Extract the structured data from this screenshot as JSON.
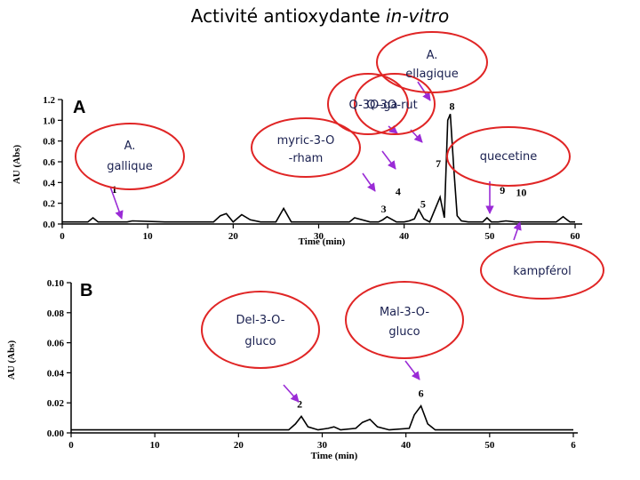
{
  "page": {
    "title_main": "Activité antioxydante ",
    "title_italic": "in-vitro"
  },
  "chart_data": [
    {
      "type": "line",
      "panel": "A",
      "xlabel": "Time (min)",
      "ylabel": "AU (Abs)",
      "xlim": [
        0,
        60
      ],
      "ylim": [
        0,
        1.2
      ],
      "xticks": [
        "0",
        "10",
        "20",
        "30",
        "40",
        "50",
        "60"
      ],
      "yticks": [
        "0.0",
        "0.2",
        "0.4",
        "0.6",
        "0.8",
        "1.0",
        "1.2"
      ],
      "series": [
        {
          "x": [
            0,
            3.0,
            3.6,
            4.2,
            6,
            7.6,
            8.2,
            12,
            16,
            17.7,
            18.5,
            19.2,
            20,
            21,
            22,
            23.2,
            25,
            25.9,
            26.8,
            30,
            33.6,
            34.2,
            36,
            37,
            37.5,
            38,
            39.1,
            40,
            40.6,
            41.2,
            41.7,
            42.3,
            43,
            44.2,
            44.7,
            45.1,
            45.4,
            45.8,
            46.2,
            46.7,
            47.5,
            49.2,
            49.7,
            50.2,
            51,
            51.9,
            53,
            56.3,
            57.8,
            58.6,
            59.4,
            60
          ],
          "y": [
            0.02,
            0.02,
            0.06,
            0.02,
            0.02,
            0.02,
            0.03,
            0.02,
            0.02,
            0.02,
            0.08,
            0.1,
            0.02,
            0.09,
            0.04,
            0.02,
            0.02,
            0.15,
            0.02,
            0.02,
            0.02,
            0.06,
            0.02,
            0.02,
            0.04,
            0.07,
            0.02,
            0.02,
            0.03,
            0.05,
            0.14,
            0.05,
            0.02,
            0.26,
            0.06,
            1.0,
            1.06,
            0.55,
            0.08,
            0.03,
            0.02,
            0.02,
            0.06,
            0.02,
            0.02,
            0.03,
            0.02,
            0.02,
            0.02,
            0.07,
            0.02,
            0.02
          ]
        }
      ],
      "peak_labels": [
        {
          "label": "1",
          "x": 6.1,
          "y": 0.3
        },
        {
          "label": "3",
          "x": 37.6,
          "y": 0.11
        },
        {
          "label": "4",
          "x": 39.3,
          "y": 0.28
        },
        {
          "label": "5",
          "x": 42.2,
          "y": 0.16
        },
        {
          "label": "7",
          "x": 44.0,
          "y": 0.55
        },
        {
          "label": "8",
          "x": 45.6,
          "y": 1.1
        },
        {
          "label": "9",
          "x": 51.5,
          "y": 0.29
        },
        {
          "label": "10",
          "x": 53.7,
          "y": 0.27
        }
      ]
    },
    {
      "type": "line",
      "panel": "B",
      "xlabel": "Time (min)",
      "ylabel": "AU (Abs)",
      "xlim": [
        0,
        60
      ],
      "ylim": [
        0,
        0.1
      ],
      "xticks": [
        "0",
        "10",
        "20",
        "30",
        "40",
        "50",
        "6"
      ],
      "yticks": [
        "0.00",
        "0.02",
        "0.04",
        "0.06",
        "0.08",
        "0.10"
      ],
      "series": [
        {
          "x": [
            0,
            26,
            26.8,
            27.5,
            28.3,
            29.5,
            30.7,
            31.4,
            32.2,
            34,
            34.8,
            35.7,
            36.6,
            38,
            40.4,
            41,
            41.8,
            42.6,
            43.5,
            60
          ],
          "y": [
            0.002,
            0.002,
            0.006,
            0.011,
            0.004,
            0.002,
            0.003,
            0.004,
            0.002,
            0.003,
            0.007,
            0.009,
            0.004,
            0.002,
            0.003,
            0.012,
            0.018,
            0.006,
            0.002,
            0.002
          ]
        }
      ],
      "peak_labels": [
        {
          "label": "2",
          "x": 27.3,
          "y": 0.017
        },
        {
          "label": "6",
          "x": 41.8,
          "y": 0.024
        }
      ]
    }
  ],
  "annotations": [
    {
      "id": "a-ellagique",
      "text": [
        "A.",
        "ellagique"
      ],
      "arrow_to": "8"
    },
    {
      "id": "q3o-ga",
      "text": [
        "Q-3O-ga"
      ],
      "arrow_to": "7"
    },
    {
      "id": "q3o-rut",
      "text": [
        "Q-3O-rut"
      ],
      "arrow_to": "7"
    },
    {
      "id": "a-gallique",
      "text": [
        "A.",
        "gallique"
      ],
      "arrow_to": "1"
    },
    {
      "id": "myric-3o-rham",
      "text": [
        "myric-3-O",
        "-rham"
      ],
      "arrow_to": "4"
    },
    {
      "id": "quecetine",
      "text": [
        "quecetine"
      ],
      "arrow_to": "9"
    },
    {
      "id": "kampferol",
      "text": [
        "kampférol"
      ],
      "arrow_to": "10"
    },
    {
      "id": "del-3o-gluco",
      "text": [
        "Del-3-O-",
        "gluco"
      ],
      "arrow_to": "2"
    },
    {
      "id": "mal-3o-gluco",
      "text": [
        "Mal-3-O-",
        "gluco"
      ],
      "arrow_to": "6"
    }
  ],
  "colors": {
    "ellipse_stroke": "#e02525",
    "arrow": "#9a2bd6",
    "trace": "#000000"
  }
}
